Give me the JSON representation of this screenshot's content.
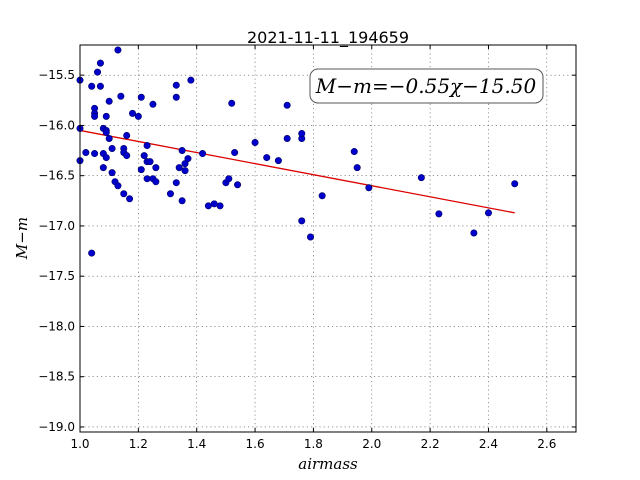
{
  "chart_data": {
    "type": "scatter",
    "title": "2021-11-11_194659",
    "xlabel": "airmass",
    "ylabel": "M−m",
    "xlim": [
      1.0,
      2.7
    ],
    "ylim": [
      -19.05,
      -15.2
    ],
    "xticks": [
      1.0,
      1.2,
      1.4,
      1.6,
      1.8,
      2.0,
      2.2,
      2.4,
      2.6
    ],
    "xtick_labels": [
      "1.0",
      "1.2",
      "1.4",
      "1.6",
      "1.8",
      "2.0",
      "2.2",
      "2.4",
      "2.6"
    ],
    "yticks": [
      -15.5,
      -16.0,
      -16.5,
      -17.0,
      -17.5,
      -18.0,
      -18.5,
      -19.0
    ],
    "ytick_labels": [
      "−15.5",
      "−16.0",
      "−16.5",
      "−17.0",
      "−17.5",
      "−18.0",
      "−18.5",
      "−19.0"
    ],
    "grid": true,
    "annotation": "M−m=−0.55χ−15.50",
    "fit": {
      "slope": -0.55,
      "intercept": -15.5,
      "x_range": [
        1.0,
        2.49
      ]
    },
    "colors": {
      "points": "#0000cc",
      "fit": "#dd0000"
    },
    "series": [
      {
        "x": [
          1.0,
          1.0,
          1.0,
          1.02,
          1.04,
          1.04,
          1.05,
          1.05,
          1.05,
          1.05,
          1.06,
          1.07,
          1.07,
          1.08,
          1.08,
          1.08,
          1.09,
          1.09,
          1.09,
          1.09,
          1.1,
          1.1,
          1.11,
          1.11,
          1.12,
          1.13,
          1.13,
          1.14,
          1.15,
          1.15,
          1.15,
          1.16,
          1.16,
          1.17,
          1.18,
          1.2,
          1.21,
          1.21,
          1.22,
          1.23,
          1.23,
          1.23,
          1.24,
          1.25,
          1.25,
          1.26,
          1.26,
          1.31,
          1.33,
          1.33,
          1.33,
          1.34,
          1.35,
          1.35,
          1.36,
          1.36,
          1.37,
          1.38,
          1.42,
          1.44,
          1.46,
          1.48,
          1.5,
          1.51,
          1.52,
          1.53,
          1.54,
          1.6,
          1.64,
          1.68,
          1.71,
          1.71,
          1.76,
          1.76,
          1.76,
          1.79,
          1.83,
          1.94,
          1.95,
          1.99,
          2.17,
          2.23,
          2.35,
          2.4,
          2.49
        ],
        "y": [
          -15.55,
          -16.03,
          -16.35,
          -16.27,
          -15.61,
          -17.27,
          -16.28,
          -15.83,
          -15.88,
          -15.91,
          -15.47,
          -15.61,
          -15.38,
          -16.03,
          -16.28,
          -16.42,
          -15.91,
          -16.05,
          -16.07,
          -16.32,
          -15.76,
          -16.13,
          -16.47,
          -16.23,
          -16.56,
          -15.25,
          -16.6,
          -15.71,
          -16.68,
          -16.23,
          -16.27,
          -16.1,
          -16.3,
          -16.73,
          -15.88,
          -15.91,
          -15.72,
          -16.44,
          -16.3,
          -16.36,
          -16.53,
          -16.2,
          -16.36,
          -15.79,
          -16.53,
          -16.56,
          -16.42,
          -16.68,
          -15.72,
          -15.6,
          -16.57,
          -16.42,
          -16.25,
          -16.75,
          -16.38,
          -16.45,
          -16.33,
          -15.55,
          -16.28,
          -16.8,
          -16.78,
          -16.8,
          -16.57,
          -16.53,
          -15.78,
          -16.27,
          -16.59,
          -16.17,
          -16.32,
          -16.35,
          -15.8,
          -16.13,
          -16.13,
          -16.08,
          -16.95,
          -17.11,
          -16.7,
          -16.26,
          -16.42,
          -16.62,
          -16.52,
          -16.88,
          -17.07,
          -16.87,
          -16.58
        ]
      }
    ]
  }
}
